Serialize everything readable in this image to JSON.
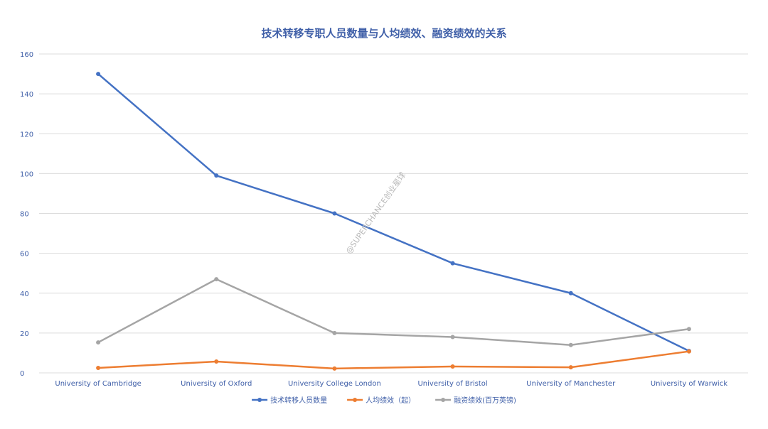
{
  "chart_data": {
    "type": "line",
    "title": "技术转移专职人员数量与人均绩效、融资绩效的关系",
    "xlabel": "",
    "ylabel": "",
    "ylim": [
      0,
      160
    ],
    "yticks": [
      0,
      20,
      40,
      60,
      80,
      100,
      120,
      140,
      160
    ],
    "grid": true,
    "legend_position": "bottom",
    "categories": [
      "University of Cambridge",
      "University of Oxford",
      "University College London",
      "University of Bristol",
      "University of Manchester",
      "University of Warwick"
    ],
    "series": [
      {
        "name": "技术转移人员数量",
        "color": "#4472c4",
        "values": [
          150,
          99,
          80,
          55,
          40,
          11
        ]
      },
      {
        "name": "人均绩效（起）",
        "color": "#ed7d31",
        "values": [
          2.5,
          5.7,
          2.2,
          3.2,
          2.8,
          10.8
        ]
      },
      {
        "name": "融资绩效(百万英镑)",
        "color": "#a5a5a5",
        "values": [
          15.3,
          47,
          20,
          18,
          14,
          22
        ]
      }
    ]
  },
  "watermark": "@SUPERCHANCE创业星球"
}
